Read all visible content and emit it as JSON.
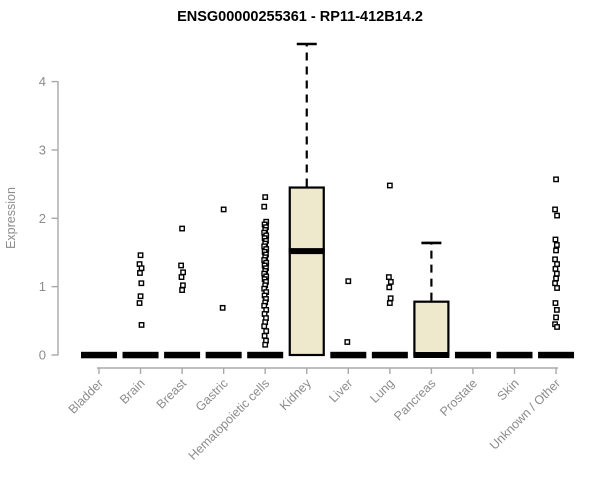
{
  "chart_data": {
    "type": "boxplot",
    "title": "ENSG00000255361 - RP11-412B14.2",
    "ylabel": "Expression",
    "xlabel": "",
    "ylim": [
      0,
      4.6
    ],
    "yticks": [
      0,
      1,
      2,
      3,
      4
    ],
    "grid": false,
    "legend": "none",
    "colors": {
      "box_fill": "#EEE8CD",
      "box_stroke": "#000000",
      "median": "#000000",
      "whisker": "#000000",
      "point_stroke": "#000000",
      "point_fill": "#FFFFFF",
      "axis_line": "#A9A9A9",
      "axis_text": "#8C8C8C",
      "title_text": "#000000",
      "background": "#FFFFFF"
    },
    "groups": [
      {
        "label": "Bladder",
        "box": {
          "q1": 0,
          "median": 0,
          "q3": 0,
          "whisker_low": 0,
          "whisker_high": 0
        },
        "points": []
      },
      {
        "label": "Brain",
        "box": {
          "q1": 0,
          "median": 0,
          "q3": 0,
          "whisker_low": 0,
          "whisker_high": 0
        },
        "points": [
          1.46,
          1.33,
          1.27,
          1.2,
          1.05,
          0.86,
          0.76,
          0.44
        ]
      },
      {
        "label": "Breast",
        "box": {
          "q1": 0,
          "median": 0,
          "q3": 0,
          "whisker_low": 0,
          "whisker_high": 0
        },
        "points": [
          1.85,
          1.31,
          1.21,
          1.14,
          1.02,
          0.95
        ]
      },
      {
        "label": "Gastric",
        "box": {
          "q1": 0,
          "median": 0,
          "q3": 0,
          "whisker_low": 0,
          "whisker_high": 0
        },
        "points": [
          2.13,
          0.69
        ]
      },
      {
        "label": "Hematopoietic cells",
        "box": {
          "q1": 0,
          "median": 0,
          "q3": 0,
          "whisker_low": 0,
          "whisker_high": 0
        },
        "points": [
          2.31,
          2.17,
          1.95,
          1.91,
          1.87,
          1.83,
          1.79,
          1.75,
          1.71,
          1.67,
          1.63,
          1.59,
          1.55,
          1.51,
          1.47,
          1.43,
          1.39,
          1.35,
          1.31,
          1.27,
          1.23,
          1.19,
          1.15,
          1.11,
          1.07,
          1.02,
          0.97,
          0.92,
          0.87,
          0.82,
          0.77,
          0.72,
          0.66,
          0.6,
          0.54,
          0.48,
          0.42,
          0.35,
          0.28,
          0.21,
          0.15
        ]
      },
      {
        "label": "Kidney",
        "box": {
          "q1": 0,
          "median": 1.52,
          "q3": 2.45,
          "whisker_low": 0,
          "whisker_high": 4.55
        },
        "points": []
      },
      {
        "label": "Liver",
        "box": {
          "q1": 0,
          "median": 0,
          "q3": 0,
          "whisker_low": 0,
          "whisker_high": 0
        },
        "points": [
          1.08,
          0.19
        ]
      },
      {
        "label": "Lung",
        "box": {
          "q1": 0,
          "median": 0,
          "q3": 0,
          "whisker_low": 0,
          "whisker_high": 0
        },
        "points": [
          2.48,
          1.14,
          1.07,
          0.99,
          0.83,
          0.76
        ]
      },
      {
        "label": "Pancreas",
        "box": {
          "q1": 0,
          "median": 0,
          "q3": 0.78,
          "whisker_low": 0,
          "whisker_high": 1.64
        },
        "points": []
      },
      {
        "label": "Prostate",
        "box": {
          "q1": 0,
          "median": 0,
          "q3": 0,
          "whisker_low": 0,
          "whisker_high": 0
        },
        "points": []
      },
      {
        "label": "Skin",
        "box": {
          "q1": 0,
          "median": 0,
          "q3": 0,
          "whisker_low": 0,
          "whisker_high": 0
        },
        "points": []
      },
      {
        "label": "Unknown / Other",
        "box": {
          "q1": 0,
          "median": 0,
          "q3": 0,
          "whisker_low": 0,
          "whisker_high": 0
        },
        "points": [
          2.57,
          2.13,
          2.04,
          1.69,
          1.61,
          1.53,
          1.4,
          1.33,
          1.26,
          1.19,
          1.12,
          1.05,
          0.98,
          0.76,
          0.66,
          0.55,
          0.45,
          0.41
        ]
      }
    ]
  }
}
